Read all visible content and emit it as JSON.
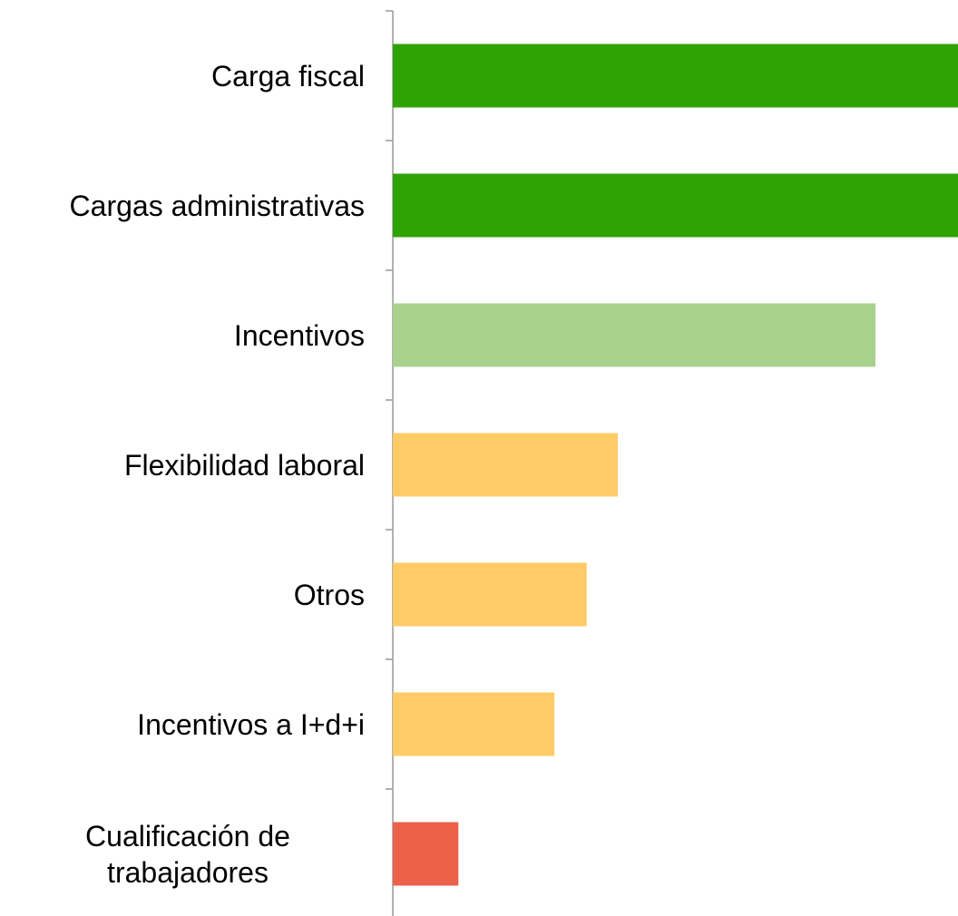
{
  "chart_data": {
    "type": "bar",
    "orientation": "horizontal",
    "categories": [
      "Carga fiscal",
      "Cargas administrativas",
      "Incentivos",
      "Flexibilidad laboral",
      "Otros",
      "Incentivos a I+d+i",
      "Cualificación de trabajadores"
    ],
    "values": [
      100,
      100,
      85.4,
      39.8,
      34.3,
      28.6,
      11.6
    ],
    "colors": [
      "#2ea304",
      "#2ea304",
      "#a9d18e",
      "#fecb66",
      "#fecb66",
      "#fecb66",
      "#ec614a"
    ],
    "xlim": [
      0,
      100
    ]
  }
}
